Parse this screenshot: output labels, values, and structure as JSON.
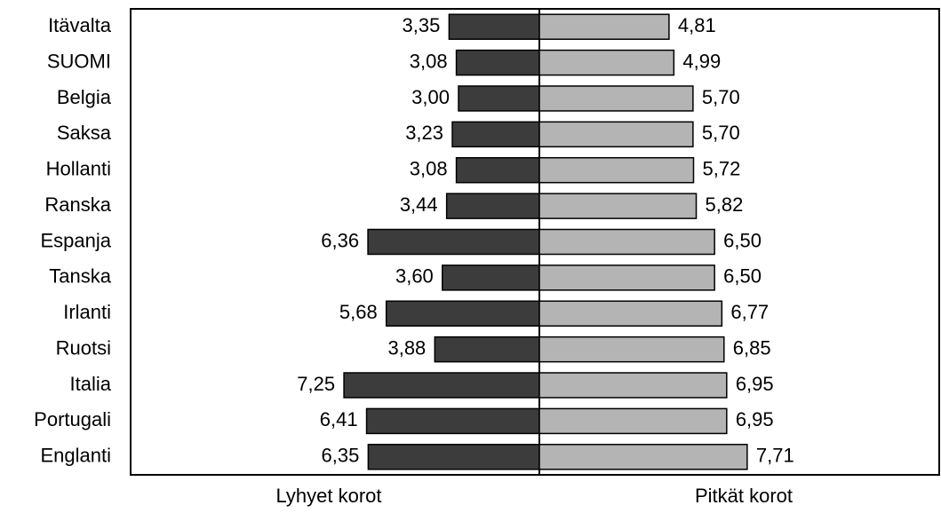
{
  "chart_data": {
    "type": "butterfly",
    "categories": [
      "Itävalta",
      "SUOMI",
      "Belgia",
      "Saksa",
      "Hollanti",
      "Ranska",
      "Espanja",
      "Tanska",
      "Irlanti",
      "Ruotsi",
      "Italia",
      "Portugali",
      "Englanti"
    ],
    "series": [
      {
        "name": "Lyhyet korot",
        "color": "#3c3c3c",
        "values": [
          3.35,
          3.08,
          3.0,
          3.23,
          3.08,
          3.44,
          6.36,
          3.6,
          5.68,
          3.88,
          7.25,
          6.41,
          6.35
        ],
        "value_labels": [
          "3,35",
          "3,08",
          "3,00",
          "3,23",
          "3,08",
          "3,44",
          "6,36",
          "3,60",
          "5,68",
          "3,88",
          "7,25",
          "6,41",
          "6,35"
        ]
      },
      {
        "name": "Pitkät korot",
        "color": "#b4b4b4",
        "values": [
          4.81,
          4.99,
          5.7,
          5.7,
          5.72,
          5.82,
          6.5,
          6.5,
          6.77,
          6.85,
          6.95,
          6.95,
          7.71
        ],
        "value_labels": [
          "4,81",
          "4,99",
          "5,70",
          "5,70",
          "5,72",
          "5,82",
          "6,50",
          "6,50",
          "6,77",
          "6,85",
          "6,95",
          "6,95",
          "7,71"
        ]
      }
    ],
    "xlim": [
      0,
      15
    ]
  }
}
